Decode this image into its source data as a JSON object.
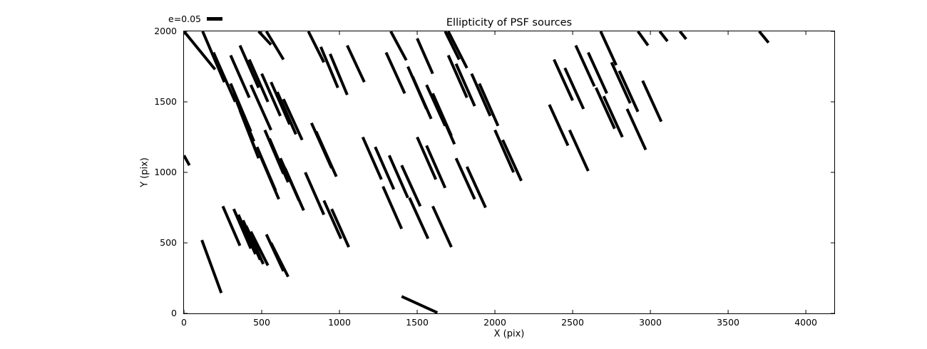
{
  "title": "Ellipticity of PSF sources",
  "legend": {
    "label": "e=0.05",
    "sample_color": "#000000"
  },
  "axes": {
    "xlabel": "X (pix)",
    "ylabel": "Y (pix)",
    "xlim": [
      0,
      4183
    ],
    "ylim": [
      0,
      2000
    ],
    "xticks": [
      0,
      500,
      1000,
      1500,
      2000,
      2500,
      3000,
      3500,
      4000
    ],
    "yticks": [
      0,
      500,
      1000,
      1500,
      2000
    ]
  },
  "chart_data": {
    "type": "line",
    "subtype": "ellipticity-whisker-segments",
    "title": "Ellipticity of PSF sources",
    "xlabel": "X (pix)",
    "ylabel": "Y (pix)",
    "xlim": [
      0,
      4183
    ],
    "ylim": [
      0,
      2000
    ],
    "grid": false,
    "legend_position": "upper-left-outside",
    "legend_label": "e=0.05",
    "stroke_color": "#000000",
    "stroke_width_px": 4,
    "segments": [
      [
        0,
        2000,
        200,
        1730
      ],
      [
        120,
        2000,
        260,
        1640
      ],
      [
        480,
        2000,
        560,
        1905
      ],
      [
        530,
        2000,
        640,
        1800
      ],
      [
        800,
        2000,
        900,
        1780
      ],
      [
        1330,
        2000,
        1430,
        1795
      ],
      [
        1680,
        2000,
        1770,
        1800
      ],
      [
        1700,
        2000,
        1820,
        1740
      ],
      [
        2680,
        2000,
        2780,
        1760
      ],
      [
        2920,
        2000,
        2985,
        1900
      ],
      [
        3060,
        2000,
        3110,
        1930
      ],
      [
        3190,
        2000,
        3230,
        1945
      ],
      [
        3700,
        2000,
        3760,
        1920
      ],
      [
        190,
        1850,
        330,
        1500
      ],
      [
        300,
        1830,
        420,
        1530
      ],
      [
        360,
        1900,
        480,
        1600
      ],
      [
        420,
        1800,
        540,
        1500
      ],
      [
        300,
        1630,
        430,
        1290
      ],
      [
        320,
        1560,
        450,
        1220
      ],
      [
        340,
        1500,
        460,
        1160
      ],
      [
        360,
        1440,
        480,
        1100
      ],
      [
        430,
        1620,
        560,
        1300
      ],
      [
        500,
        1700,
        620,
        1400
      ],
      [
        560,
        1640,
        680,
        1340
      ],
      [
        600,
        1570,
        720,
        1270
      ],
      [
        640,
        1520,
        760,
        1230
      ],
      [
        520,
        1300,
        640,
        990
      ],
      [
        550,
        1240,
        670,
        930
      ],
      [
        470,
        1180,
        590,
        870
      ],
      [
        490,
        1120,
        610,
        810
      ],
      [
        620,
        1100,
        740,
        800
      ],
      [
        650,
        1030,
        770,
        730
      ],
      [
        820,
        1350,
        950,
        1030
      ],
      [
        850,
        1290,
        980,
        970
      ],
      [
        780,
        1000,
        900,
        700
      ],
      [
        250,
        760,
        360,
        480
      ],
      [
        320,
        740,
        430,
        460
      ],
      [
        350,
        700,
        460,
        420
      ],
      [
        380,
        660,
        490,
        380
      ],
      [
        400,
        620,
        510,
        350
      ],
      [
        430,
        580,
        540,
        340
      ],
      [
        115,
        520,
        240,
        145
      ],
      [
        530,
        560,
        640,
        300
      ],
      [
        560,
        500,
        670,
        260
      ],
      [
        0,
        1120,
        35,
        1050
      ],
      [
        880,
        1890,
        990,
        1600
      ],
      [
        940,
        1840,
        1050,
        1550
      ],
      [
        1050,
        1900,
        1160,
        1640
      ],
      [
        1300,
        1850,
        1420,
        1560
      ],
      [
        1440,
        1750,
        1560,
        1450
      ],
      [
        1470,
        1680,
        1590,
        1380
      ],
      [
        1500,
        1950,
        1600,
        1700
      ],
      [
        1560,
        1620,
        1680,
        1330
      ],
      [
        1600,
        1560,
        1720,
        1260
      ],
      [
        1620,
        1500,
        1740,
        1200
      ],
      [
        1700,
        1830,
        1820,
        1530
      ],
      [
        1750,
        1770,
        1870,
        1470
      ],
      [
        1850,
        1700,
        1970,
        1400
      ],
      [
        1900,
        1630,
        2020,
        1330
      ],
      [
        1150,
        1250,
        1270,
        950
      ],
      [
        1230,
        1180,
        1350,
        880
      ],
      [
        1320,
        1120,
        1440,
        820
      ],
      [
        1400,
        1050,
        1520,
        760
      ],
      [
        1500,
        1250,
        1620,
        950
      ],
      [
        1560,
        1190,
        1680,
        890
      ],
      [
        1280,
        900,
        1400,
        600
      ],
      [
        1450,
        820,
        1570,
        530
      ],
      [
        1600,
        760,
        1720,
        470
      ],
      [
        900,
        800,
        1010,
        530
      ],
      [
        950,
        740,
        1060,
        470
      ],
      [
        1750,
        1100,
        1870,
        810
      ],
      [
        1820,
        1040,
        1940,
        750
      ],
      [
        2000,
        1300,
        2120,
        1000
      ],
      [
        2050,
        1230,
        2170,
        940
      ],
      [
        2380,
        1800,
        2500,
        1510
      ],
      [
        2450,
        1740,
        2570,
        1450
      ],
      [
        2520,
        1900,
        2640,
        1610
      ],
      [
        2600,
        1850,
        2720,
        1560
      ],
      [
        2350,
        1480,
        2470,
        1190
      ],
      [
        2480,
        1300,
        2600,
        1010
      ],
      [
        2650,
        1600,
        2770,
        1310
      ],
      [
        2700,
        1540,
        2820,
        1250
      ],
      [
        2750,
        1780,
        2870,
        1490
      ],
      [
        2800,
        1720,
        2920,
        1430
      ],
      [
        2850,
        1450,
        2970,
        1160
      ],
      [
        2950,
        1650,
        3070,
        1360
      ],
      [
        1400,
        120,
        1630,
        5
      ]
    ]
  }
}
